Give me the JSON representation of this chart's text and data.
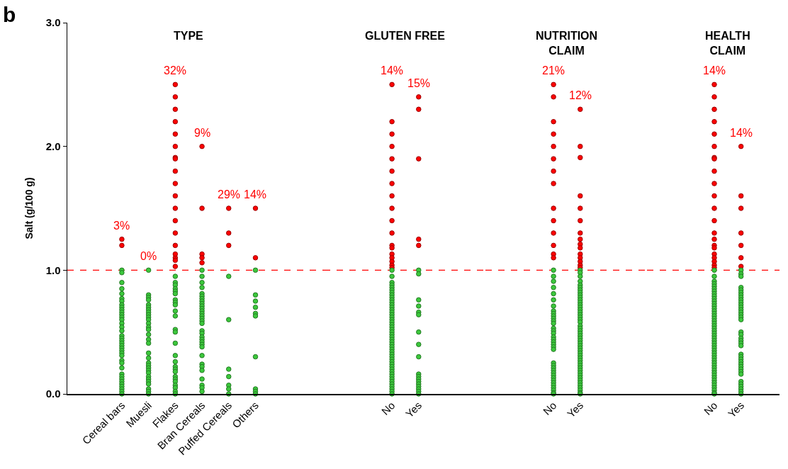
{
  "chart_data": [
    {
      "type": "scatter",
      "title": "TYPE",
      "ylabel": "Salt (g/100 g)",
      "marker": "circle",
      "categories": [
        "Cereal bars",
        "Muesli",
        "Flakes",
        "Bran Cereals",
        "Puffed Cereals",
        "Others"
      ],
      "ylim": [
        0,
        3
      ],
      "yticks": [
        {
          "value": 0,
          "label": "0.0"
        },
        {
          "value": 1,
          "label": "1.0"
        },
        {
          "value": 2,
          "label": "2.0"
        },
        {
          "value": 3,
          "label": "3.0"
        }
      ],
      "ref_lines": [
        {
          "axis": "y",
          "value": 1,
          "color": "#ff0000",
          "line_style": "dashed"
        }
      ],
      "annotations": [
        "b",
        "3%",
        "0%",
        "32%",
        "9%",
        "29%",
        "14%"
      ],
      "series": [
        {
          "color": "#ff0000",
          "x": [
            "Cereal bars",
            "Cereal bars",
            "Flakes",
            "Flakes",
            "Flakes",
            "Flakes",
            "Flakes",
            "Flakes",
            "Flakes",
            "Flakes",
            "Flakes",
            "Flakes",
            "Flakes",
            "Flakes",
            "Flakes",
            "Flakes",
            "Flakes",
            "Flakes",
            "Flakes",
            "Flakes",
            "Flakes",
            "Bran Cereals",
            "Bran Cereals",
            "Bran Cereals",
            "Bran Cereals",
            "Bran Cereals",
            "Puffed Cereals",
            "Puffed Cereals",
            "Puffed Cereals",
            "Others",
            "Others"
          ],
          "values": [
            1.25,
            1.2,
            2.5,
            2.4,
            2.3,
            2.2,
            2.1,
            2.0,
            1.91,
            1.9,
            1.8,
            1.7,
            1.6,
            1.5,
            1.4,
            1.3,
            1.2,
            1.1,
            1.13,
            1.08,
            1.03,
            2.0,
            1.5,
            1.13,
            1.1,
            1.06,
            1.5,
            1.3,
            1.2,
            1.5,
            1.1
          ]
        },
        {
          "color": "#3cc83c",
          "x": [
            "Cereal bars",
            "Cereal bars",
            "Cereal bars",
            "Cereal bars",
            "Cereal bars",
            "Cereal bars",
            "Cereal bars",
            "Cereal bars",
            "Cereal bars",
            "Cereal bars",
            "Cereal bars",
            "Cereal bars",
            "Cereal bars",
            "Cereal bars",
            "Cereal bars",
            "Cereal bars",
            "Cereal bars",
            "Cereal bars",
            "Cereal bars",
            "Cereal bars",
            "Cereal bars",
            "Cereal bars",
            "Cereal bars",
            "Cereal bars",
            "Cereal bars",
            "Cereal bars",
            "Cereal bars",
            "Cereal bars",
            "Cereal bars",
            "Cereal bars",
            "Cereal bars",
            "Cereal bars",
            "Cereal bars",
            "Cereal bars",
            "Cereal bars",
            "Cereal bars",
            "Cereal bars",
            "Cereal bars",
            "Muesli",
            "Muesli",
            "Muesli",
            "Muesli",
            "Muesli",
            "Muesli",
            "Muesli",
            "Muesli",
            "Muesli",
            "Muesli",
            "Muesli",
            "Muesli",
            "Muesli",
            "Muesli",
            "Muesli",
            "Muesli",
            "Muesli",
            "Muesli",
            "Muesli",
            "Muesli",
            "Muesli",
            "Muesli",
            "Muesli",
            "Muesli",
            "Muesli",
            "Muesli",
            "Muesli",
            "Muesli",
            "Muesli",
            "Muesli",
            "Muesli",
            "Flakes",
            "Flakes",
            "Flakes",
            "Flakes",
            "Flakes",
            "Flakes",
            "Flakes",
            "Flakes",
            "Flakes",
            "Flakes",
            "Flakes",
            "Flakes",
            "Flakes",
            "Flakes",
            "Flakes",
            "Flakes",
            "Flakes",
            "Flakes",
            "Flakes",
            "Flakes",
            "Flakes",
            "Flakes",
            "Flakes",
            "Flakes",
            "Flakes",
            "Flakes",
            "Bran Cereals",
            "Bran Cereals",
            "Bran Cereals",
            "Bran Cereals",
            "Bran Cereals",
            "Bran Cereals",
            "Bran Cereals",
            "Bran Cereals",
            "Bran Cereals",
            "Bran Cereals",
            "Bran Cereals",
            "Bran Cereals",
            "Bran Cereals",
            "Bran Cereals",
            "Bran Cereals",
            "Bran Cereals",
            "Bran Cereals",
            "Bran Cereals",
            "Bran Cereals",
            "Bran Cereals",
            "Bran Cereals",
            "Bran Cereals",
            "Bran Cereals",
            "Bran Cereals",
            "Bran Cereals",
            "Bran Cereals",
            "Bran Cereals",
            "Bran Cereals",
            "Bran Cereals",
            "Bran Cereals",
            "Bran Cereals",
            "Bran Cereals",
            "Puffed Cereals",
            "Puffed Cereals",
            "Puffed Cereals",
            "Puffed Cereals",
            "Puffed Cereals",
            "Puffed Cereals",
            "Puffed Cereals",
            "Others",
            "Others",
            "Others",
            "Others",
            "Others",
            "Others",
            "Others",
            "Others",
            "Others",
            "Others"
          ],
          "values": [
            1.0,
            0.98,
            0.9,
            0.85,
            0.81,
            0.77,
            0.75,
            0.72,
            0.7,
            0.68,
            0.66,
            0.64,
            0.62,
            0.6,
            0.57,
            0.54,
            0.51,
            0.47,
            0.45,
            0.43,
            0.41,
            0.39,
            0.37,
            0.35,
            0.33,
            0.31,
            0.27,
            0.25,
            0.21,
            0.16,
            0.14,
            0.12,
            0.1,
            0.08,
            0.06,
            0.04,
            0.02,
            0.0,
            1.0,
            0.8,
            0.78,
            0.76,
            0.72,
            0.7,
            0.68,
            0.66,
            0.64,
            0.62,
            0.6,
            0.57,
            0.54,
            0.52,
            0.48,
            0.44,
            0.41,
            0.33,
            0.29,
            0.25,
            0.23,
            0.21,
            0.19,
            0.17,
            0.14,
            0.12,
            0.1,
            0.08,
            0.04,
            0.02,
            0.0,
            0.95,
            0.9,
            0.88,
            0.85,
            0.83,
            0.81,
            0.76,
            0.74,
            0.72,
            0.67,
            0.63,
            0.52,
            0.5,
            0.41,
            0.31,
            0.26,
            0.22,
            0.2,
            0.18,
            0.14,
            0.12,
            0.1,
            0.07,
            0.05,
            0.02,
            0.0,
            1.0,
            0.95,
            0.9,
            0.86,
            0.81,
            0.79,
            0.77,
            0.75,
            0.73,
            0.71,
            0.69,
            0.67,
            0.65,
            0.63,
            0.61,
            0.59,
            0.57,
            0.51,
            0.49,
            0.46,
            0.44,
            0.42,
            0.4,
            0.38,
            0.31,
            0.24,
            0.22,
            0.19,
            0.12,
            0.07,
            0.05,
            0.02,
            0.95,
            0.6,
            0.2,
            0.14,
            0.07,
            0.04,
            0.0,
            1.0,
            0.8,
            0.75,
            0.7,
            0.65,
            0.63,
            0.3,
            0.04,
            0.02,
            0.0
          ]
        }
      ]
    },
    {
      "type": "scatter",
      "title": "GLUTEN FREE",
      "marker": "circle",
      "categories": [
        "No",
        "Yes"
      ],
      "ylim": [
        0,
        3
      ],
      "tick_labels": "x",
      "ref_lines": [
        {
          "axis": "y",
          "value": 1,
          "color": "#ff0000",
          "line_style": "dashed"
        }
      ],
      "annotations": [
        "14%",
        "15%"
      ],
      "series": [
        {
          "color": "#ff0000",
          "x": [
            "No",
            "No",
            "No",
            "No",
            "No",
            "No",
            "No",
            "No",
            "No",
            "No",
            "No",
            "No",
            "No",
            "No",
            "No",
            "No",
            "No",
            "No",
            "Yes",
            "Yes",
            "Yes",
            "Yes",
            "Yes"
          ],
          "values": [
            2.5,
            2.2,
            2.1,
            2.0,
            1.9,
            1.8,
            1.7,
            1.6,
            1.5,
            1.4,
            1.3,
            1.2,
            1.18,
            1.13,
            1.1,
            1.07,
            1.04,
            1.02,
            2.4,
            2.3,
            1.9,
            1.25,
            1.2
          ]
        },
        {
          "color": "#3cc83c",
          "x": [
            "No",
            "No",
            "No",
            "No",
            "No",
            "No",
            "No",
            "No",
            "No",
            "No",
            "No",
            "No",
            "No",
            "No",
            "No",
            "No",
            "No",
            "No",
            "No",
            "No",
            "No",
            "No",
            "No",
            "No",
            "No",
            "No",
            "No",
            "No",
            "No",
            "No",
            "No",
            "No",
            "No",
            "No",
            "No",
            "No",
            "No",
            "No",
            "No",
            "No",
            "No",
            "No",
            "No",
            "No",
            "No",
            "No",
            "No",
            "No",
            "Yes",
            "Yes",
            "Yes",
            "Yes",
            "Yes",
            "Yes",
            "Yes",
            "Yes",
            "Yes",
            "Yes",
            "Yes",
            "Yes",
            "Yes",
            "Yes",
            "Yes",
            "Yes",
            "Yes",
            "Yes"
          ],
          "values": [
            1.0,
            0.95,
            0.9,
            0.88,
            0.86,
            0.84,
            0.82,
            0.8,
            0.78,
            0.76,
            0.74,
            0.72,
            0.7,
            0.68,
            0.66,
            0.64,
            0.62,
            0.6,
            0.58,
            0.56,
            0.54,
            0.52,
            0.5,
            0.48,
            0.46,
            0.44,
            0.42,
            0.4,
            0.38,
            0.36,
            0.34,
            0.32,
            0.3,
            0.28,
            0.26,
            0.24,
            0.22,
            0.2,
            0.18,
            0.16,
            0.14,
            0.12,
            0.1,
            0.08,
            0.06,
            0.04,
            0.02,
            0.0,
            1.0,
            0.97,
            0.76,
            0.71,
            0.66,
            0.64,
            0.5,
            0.4,
            0.3,
            0.16,
            0.14,
            0.12,
            0.1,
            0.08,
            0.06,
            0.04,
            0.02,
            0.0
          ]
        }
      ]
    },
    {
      "type": "scatter",
      "title": "NUTRITION\nCLAIM",
      "marker": "circle",
      "categories": [
        "No",
        "Yes"
      ],
      "ylim": [
        0,
        3
      ],
      "tick_labels": "x",
      "ref_lines": [
        {
          "axis": "y",
          "value": 1,
          "color": "#ff0000",
          "line_style": "dashed"
        }
      ],
      "annotations": [
        "21%",
        "12%"
      ],
      "series": [
        {
          "color": "#ff0000",
          "x": [
            "No",
            "No",
            "No",
            "No",
            "No",
            "No",
            "No",
            "No",
            "No",
            "No",
            "No",
            "No",
            "No",
            "No",
            "Yes",
            "Yes",
            "Yes",
            "Yes",
            "Yes",
            "Yes",
            "Yes",
            "Yes",
            "Yes",
            "Yes",
            "Yes",
            "Yes",
            "Yes",
            "Yes",
            "Yes"
          ],
          "values": [
            2.5,
            2.4,
            2.2,
            2.1,
            2.0,
            1.9,
            1.8,
            1.7,
            1.5,
            1.4,
            1.3,
            1.2,
            1.13,
            1.1,
            2.3,
            2.0,
            1.91,
            1.6,
            1.5,
            1.4,
            1.3,
            1.25,
            1.21,
            1.18,
            1.13,
            1.1,
            1.07,
            1.04,
            1.02
          ]
        },
        {
          "color": "#3cc83c",
          "x": [
            "No",
            "No",
            "No",
            "No",
            "No",
            "No",
            "No",
            "No",
            "No",
            "No",
            "No",
            "No",
            "No",
            "No",
            "No",
            "No",
            "No",
            "No",
            "No",
            "No",
            "No",
            "No",
            "No",
            "No",
            "No",
            "No",
            "No",
            "No",
            "No",
            "No",
            "No",
            "No",
            "No",
            "No",
            "No",
            "No",
            "Yes",
            "Yes",
            "Yes",
            "Yes",
            "Yes",
            "Yes",
            "Yes",
            "Yes",
            "Yes",
            "Yes",
            "Yes",
            "Yes",
            "Yes",
            "Yes",
            "Yes",
            "Yes",
            "Yes",
            "Yes",
            "Yes",
            "Yes",
            "Yes",
            "Yes",
            "Yes",
            "Yes",
            "Yes",
            "Yes",
            "Yes",
            "Yes",
            "Yes",
            "Yes",
            "Yes",
            "Yes",
            "Yes",
            "Yes",
            "Yes",
            "Yes",
            "Yes",
            "Yes",
            "Yes",
            "Yes",
            "Yes",
            "Yes",
            "Yes",
            "Yes",
            "Yes",
            "Yes",
            "Yes",
            "Yes",
            "Yes"
          ],
          "values": [
            1.0,
            0.95,
            0.91,
            0.86,
            0.81,
            0.76,
            0.71,
            0.67,
            0.65,
            0.63,
            0.61,
            0.59,
            0.57,
            0.53,
            0.51,
            0.49,
            0.46,
            0.44,
            0.42,
            0.4,
            0.38,
            0.36,
            0.25,
            0.23,
            0.21,
            0.19,
            0.17,
            0.15,
            0.13,
            0.11,
            0.09,
            0.07,
            0.05,
            0.03,
            0.01,
            0.0,
            1.0,
            0.98,
            0.95,
            0.91,
            0.88,
            0.86,
            0.84,
            0.82,
            0.8,
            0.78,
            0.76,
            0.74,
            0.72,
            0.7,
            0.68,
            0.66,
            0.64,
            0.62,
            0.6,
            0.58,
            0.55,
            0.53,
            0.51,
            0.49,
            0.47,
            0.45,
            0.43,
            0.41,
            0.39,
            0.37,
            0.35,
            0.33,
            0.31,
            0.29,
            0.27,
            0.25,
            0.23,
            0.21,
            0.19,
            0.17,
            0.15,
            0.13,
            0.11,
            0.09,
            0.07,
            0.05,
            0.03,
            0.01,
            0.0
          ]
        }
      ]
    },
    {
      "type": "scatter",
      "title": "HEALTH\nCLAIM",
      "marker": "circle",
      "categories": [
        "No",
        "Yes"
      ],
      "ylim": [
        0,
        3
      ],
      "tick_labels": "x",
      "ref_lines": [
        {
          "axis": "y",
          "value": 1,
          "color": "#ff0000",
          "line_style": "dashed"
        }
      ],
      "annotations": [
        "14%",
        "14%"
      ],
      "series": [
        {
          "color": "#ff0000",
          "x": [
            "No",
            "No",
            "No",
            "No",
            "No",
            "No",
            "No",
            "No",
            "No",
            "No",
            "No",
            "No",
            "No",
            "No",
            "No",
            "No",
            "No",
            "No",
            "No",
            "No",
            "No",
            "No",
            "Yes",
            "Yes",
            "Yes",
            "Yes",
            "Yes",
            "Yes",
            "Yes"
          ],
          "values": [
            2.5,
            2.4,
            2.3,
            2.2,
            2.1,
            2.0,
            1.91,
            1.9,
            1.8,
            1.7,
            1.6,
            1.5,
            1.4,
            1.3,
            1.25,
            1.2,
            1.18,
            1.13,
            1.1,
            1.07,
            1.04,
            1.02,
            2.0,
            1.6,
            1.5,
            1.3,
            1.2,
            1.1,
            1.03
          ]
        },
        {
          "color": "#3cc83c",
          "x": [
            "No",
            "No",
            "No",
            "No",
            "No",
            "No",
            "No",
            "No",
            "No",
            "No",
            "No",
            "No",
            "No",
            "No",
            "No",
            "No",
            "No",
            "No",
            "No",
            "No",
            "No",
            "No",
            "No",
            "No",
            "No",
            "No",
            "No",
            "No",
            "No",
            "No",
            "No",
            "No",
            "No",
            "No",
            "No",
            "No",
            "No",
            "No",
            "No",
            "No",
            "No",
            "No",
            "No",
            "No",
            "No",
            "No",
            "No",
            "No",
            "No",
            "Yes",
            "Yes",
            "Yes",
            "Yes",
            "Yes",
            "Yes",
            "Yes",
            "Yes",
            "Yes",
            "Yes",
            "Yes",
            "Yes",
            "Yes",
            "Yes",
            "Yes",
            "Yes",
            "Yes",
            "Yes",
            "Yes",
            "Yes",
            "Yes",
            "Yes",
            "Yes",
            "Yes",
            "Yes",
            "Yes",
            "Yes",
            "Yes",
            "Yes",
            "Yes",
            "Yes",
            "Yes",
            "Yes",
            "Yes",
            "Yes",
            "Yes",
            "Yes",
            "Yes"
          ],
          "values": [
            1.0,
            0.95,
            0.91,
            0.89,
            0.87,
            0.85,
            0.83,
            0.81,
            0.79,
            0.77,
            0.75,
            0.73,
            0.71,
            0.69,
            0.67,
            0.65,
            0.63,
            0.61,
            0.59,
            0.57,
            0.55,
            0.53,
            0.51,
            0.49,
            0.47,
            0.45,
            0.43,
            0.41,
            0.39,
            0.37,
            0.35,
            0.33,
            0.31,
            0.29,
            0.27,
            0.25,
            0.23,
            0.21,
            0.19,
            0.17,
            0.15,
            0.13,
            0.11,
            0.09,
            0.07,
            0.05,
            0.03,
            0.01,
            0.0,
            1.0,
            0.97,
            0.95,
            0.86,
            0.84,
            0.82,
            0.8,
            0.78,
            0.76,
            0.74,
            0.72,
            0.7,
            0.68,
            0.66,
            0.64,
            0.62,
            0.6,
            0.5,
            0.48,
            0.45,
            0.43,
            0.41,
            0.39,
            0.32,
            0.3,
            0.28,
            0.26,
            0.24,
            0.22,
            0.2,
            0.18,
            0.16,
            0.1,
            0.08,
            0.06,
            0.04,
            0.02,
            0.0
          ]
        }
      ]
    }
  ]
}
